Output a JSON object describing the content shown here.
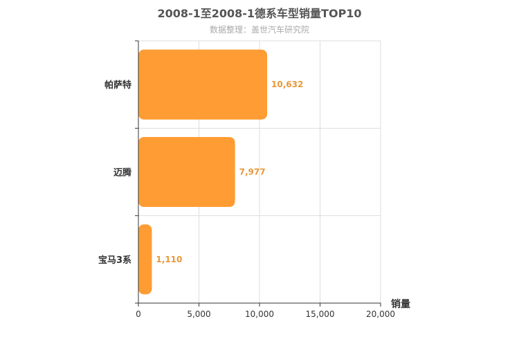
{
  "chart_data": {
    "type": "bar",
    "orientation": "horizontal",
    "title": "2008-1至2008-1德系车型销量TOP10",
    "subtitle": "数据整理：盖世汽车研究院",
    "categories": [
      "帕萨特",
      "迈腾",
      "宝马3系"
    ],
    "values": [
      10632,
      7977,
      1110
    ],
    "value_labels": [
      "10,632",
      "7,977",
      "1,110"
    ],
    "xlabel": "销量",
    "ylabel": "",
    "xlim": [
      0,
      20000
    ],
    "x_ticks": [
      0,
      5000,
      10000,
      15000,
      20000
    ],
    "x_tick_labels": [
      "0",
      "5,000",
      "10,000",
      "15,000",
      "20,000"
    ],
    "grid": true,
    "colors": {
      "bar": "#ff9c33",
      "value_label": "#e8973a",
      "grid": "#dddddd",
      "axis": "#333333",
      "title": "#555555",
      "subtitle": "#aaaaaa"
    }
  }
}
